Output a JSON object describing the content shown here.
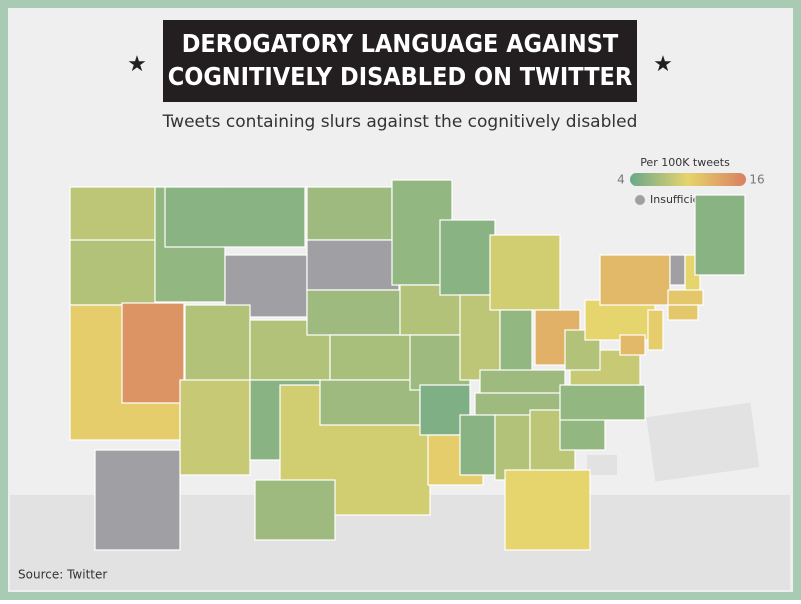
{
  "header": {
    "title_line1": "DEROGATORY LANGUAGE AGAINST",
    "title_line2": "COGNITIVELY DISABLED ON TWITTER",
    "subtitle": "Tweets containing slurs against the cognitively disabled"
  },
  "chart_data": {
    "type": "choropleth",
    "legend_title": "Per 100K tweets",
    "scale_min": 4,
    "scale_max": 16,
    "colors": [
      "#6aa88a",
      "#e6d46c",
      "#d97f63"
    ],
    "missing_color": "#a0a0a4",
    "missing_label": "Insufficient Data",
    "values": [
      8,
      7.5,
      10.5,
      14.5,
      6,
      5.5,
      null,
      7.5,
      8.5,
      7.5,
      5.5,
      6.5,
      null,
      6.5,
      7,
      9,
      6.5,
      6,
      7.5,
      6.5,
      5,
      10.5,
      5.5,
      8,
      9,
      6,
      12.5,
      6.5,
      6.5,
      5.5,
      7.5,
      8,
      10,
      6,
      6,
      8.5,
      7.5,
      10,
      12,
      12,
      10.5,
      null,
      10,
      5.5,
      11,
      11,
      null,
      6.5
    ]
  },
  "source": "Source: Twitter"
}
